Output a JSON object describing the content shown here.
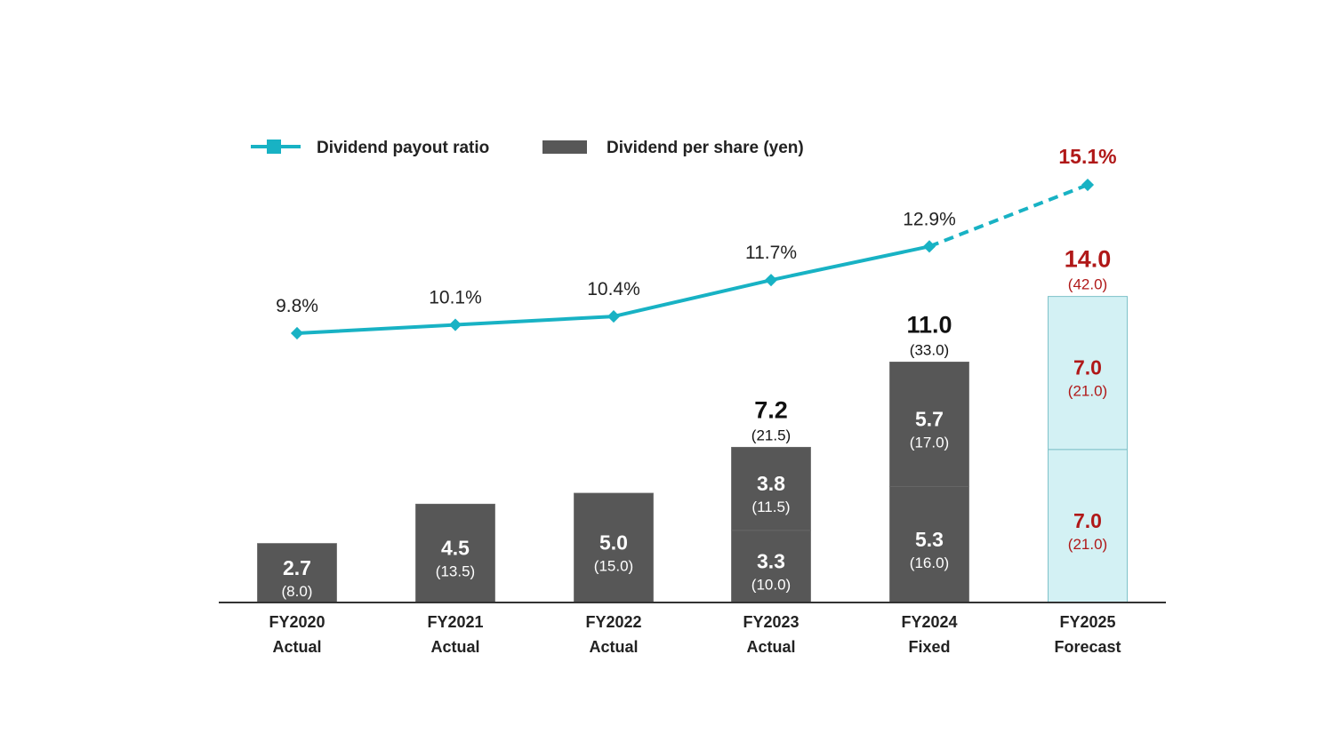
{
  "legend": {
    "line_label": "Dividend payout ratio",
    "bar_label": "Dividend per share (yen)"
  },
  "colors": {
    "bar": "#575757",
    "bar_forecast": "#d3f1f4",
    "bar_forecast_border": "#7fc2c9",
    "line": "#18b2c4",
    "highlight": "#b01818",
    "text": "#222222"
  },
  "chart_data": {
    "type": "bar",
    "categories": [
      {
        "year": "FY2020",
        "status": "Actual"
      },
      {
        "year": "FY2021",
        "status": "Actual"
      },
      {
        "year": "FY2022",
        "status": "Actual"
      },
      {
        "year": "FY2023",
        "status": "Actual"
      },
      {
        "year": "FY2024",
        "status": "Fixed"
      },
      {
        "year": "FY2025",
        "status": "Forecast"
      }
    ],
    "bars": [
      {
        "segments": [
          {
            "value": 2.7,
            "label": "2.7",
            "sub": "(8.0)"
          }
        ],
        "total": null,
        "forecast": false
      },
      {
        "segments": [
          {
            "value": 4.5,
            "label": "4.5",
            "sub": "(13.5)"
          }
        ],
        "total": null,
        "forecast": false
      },
      {
        "segments": [
          {
            "value": 5.0,
            "label": "5.0",
            "sub": "(15.0)"
          }
        ],
        "total": null,
        "forecast": false
      },
      {
        "segments": [
          {
            "value": 3.3,
            "label": "3.3",
            "sub": "(10.0)"
          },
          {
            "value": 3.8,
            "label": "3.8",
            "sub": "(11.5)"
          }
        ],
        "total": {
          "label": "7.2",
          "sub": "(21.5)"
        },
        "forecast": false
      },
      {
        "segments": [
          {
            "value": 5.3,
            "label": "5.3",
            "sub": "(16.0)"
          },
          {
            "value": 5.7,
            "label": "5.7",
            "sub": "(17.0)"
          }
        ],
        "total": {
          "label": "11.0",
          "sub": "(33.0)"
        },
        "forecast": false
      },
      {
        "segments": [
          {
            "value": 7.0,
            "label": "7.0",
            "sub": "(21.0)"
          },
          {
            "value": 7.0,
            "label": "7.0",
            "sub": "(21.0)"
          }
        ],
        "total": {
          "label": "14.0",
          "sub": "(42.0)"
        },
        "forecast": true
      }
    ],
    "payout_ratio": {
      "values": [
        9.8,
        10.1,
        10.4,
        11.7,
        12.9,
        15.1
      ],
      "labels": [
        "9.8%",
        "10.1%",
        "10.4%",
        "11.7%",
        "12.9%",
        "15.1%"
      ],
      "dashed_from_index": 4
    },
    "bar_ylim": [
      0,
      14
    ],
    "line_ylim": [
      0,
      16
    ]
  }
}
